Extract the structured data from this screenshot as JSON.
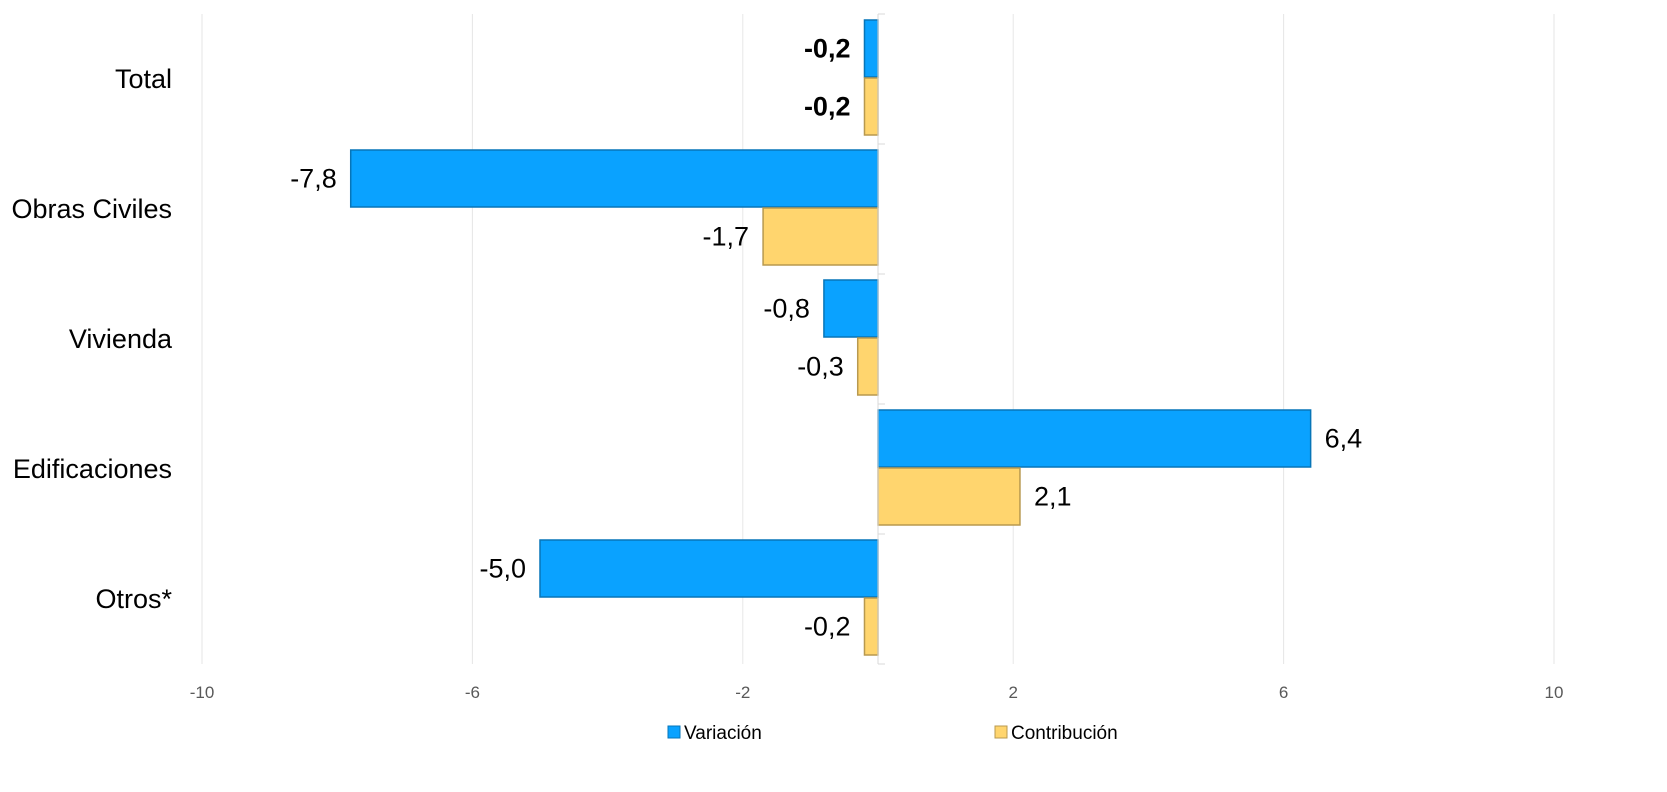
{
  "chart_data": {
    "type": "bar",
    "orientation": "horizontal",
    "categories": [
      "Total",
      "Obras Civiles",
      "Vivienda",
      "Edificaciones",
      "Otros*"
    ],
    "series": [
      {
        "name": "Variación",
        "values": [
          -0.2,
          -7.8,
          -0.8,
          6.4,
          -5.0
        ],
        "color": "#0AA2FF"
      },
      {
        "name": "Contribución",
        "values": [
          -0.2,
          -1.7,
          -0.3,
          2.1,
          -0.2
        ],
        "color": "#FFD56E"
      }
    ],
    "data_labels": [
      [
        "-0,2",
        "-7,8",
        "-0,8",
        "6,4",
        "-5,0"
      ],
      [
        "-0,2",
        "-1,7",
        "-0,3",
        "2,1",
        "-0,2"
      ]
    ],
    "bold_categories": [
      "Total"
    ],
    "xlim": [
      -10,
      10
    ],
    "xticks": [
      -10,
      -6,
      -2,
      2,
      6,
      10
    ],
    "xtick_labels": [
      "-10",
      "-6",
      "-2",
      "2",
      "6",
      "10"
    ],
    "grid": "vertical",
    "legend_position": "bottom",
    "title": "",
    "xlabel": "",
    "ylabel": ""
  }
}
